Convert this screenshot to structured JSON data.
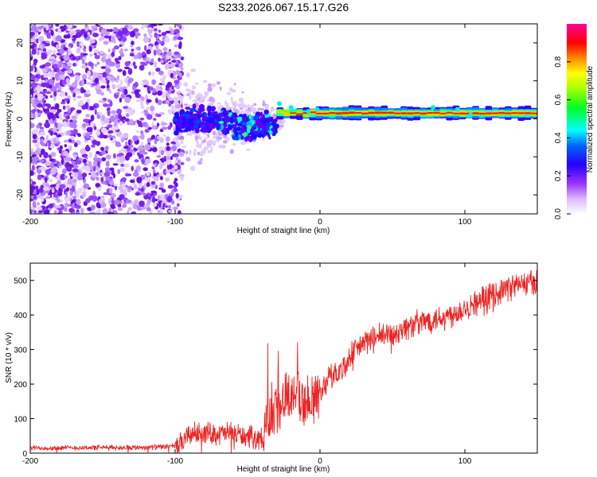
{
  "title": "S233.2026.067.15.17.G26",
  "chart_data": [
    {
      "type": "heatmap",
      "name": "spectrogram",
      "xlabel": "Height of straight line (km)",
      "ylabel": "Frequency (Hz)",
      "xlim": [
        -200,
        150
      ],
      "ylim": [
        -25,
        25
      ],
      "xticks": [
        -200,
        -100,
        0,
        100
      ],
      "xticklabels": [
        "-200",
        "-100",
        "0",
        "100"
      ],
      "yticks": [
        -20,
        -10,
        0,
        10,
        20
      ],
      "yticklabels": [
        "-20",
        "-10",
        "0",
        "10",
        "20"
      ],
      "colorbar": {
        "label": "Normalized spectral amplitude",
        "range": [
          0,
          1
        ],
        "ticks": [
          0,
          0.2,
          0.4,
          0.6,
          0.8
        ],
        "ticklabels": [
          "0.0",
          "0.2",
          "0.4",
          "0.6",
          "0.8"
        ],
        "colormap": [
          "#ffffff",
          "#cc99ff",
          "#6600ff",
          "#0000ff",
          "#00ffff",
          "#00ff00",
          "#ffff00",
          "#ff8800",
          "#ff0000",
          "#ff00aa"
        ]
      },
      "features": [
        {
          "region": "noise",
          "x_range": [
            -200,
            -100
          ],
          "freq_range": [
            -25,
            25
          ],
          "amplitude": 0.1
        },
        {
          "region": "transition",
          "x_range": [
            -100,
            -30
          ],
          "freq_range": [
            -8,
            8
          ],
          "amplitude": 0.3
        },
        {
          "region": "signal_line",
          "x_range": [
            -30,
            150
          ],
          "frequency": 1.5,
          "amplitude": 0.9
        }
      ]
    },
    {
      "type": "line",
      "name": "snr",
      "xlabel": "Height of straight line (km)",
      "ylabel": "SNR (10 * v/v)",
      "xlim": [
        -200,
        150
      ],
      "ylim": [
        0,
        550
      ],
      "xticks": [
        -200,
        -100,
        0,
        100
      ],
      "xticklabels": [
        "-200",
        "-100",
        "0",
        "100"
      ],
      "yticks": [
        0,
        100,
        200,
        300,
        400,
        500
      ],
      "yticklabels": [
        "0",
        "100",
        "200",
        "300",
        "400",
        "500"
      ],
      "color": "#ee2222",
      "series": [
        {
          "name": "SNR",
          "x": [
            -200,
            -180,
            -160,
            -140,
            -120,
            -110,
            -100,
            -95,
            -90,
            -80,
            -70,
            -60,
            -50,
            -40,
            -35,
            -30,
            -25,
            -20,
            -15,
            -10,
            -5,
            0,
            5,
            10,
            15,
            20,
            30,
            40,
            50,
            60,
            70,
            80,
            90,
            100,
            110,
            120,
            130,
            140,
            150
          ],
          "y": [
            15,
            15,
            16,
            16,
            17,
            18,
            20,
            30,
            55,
            60,
            55,
            60,
            45,
            45,
            80,
            140,
            150,
            160,
            180,
            140,
            160,
            170,
            215,
            230,
            240,
            275,
            320,
            335,
            345,
            365,
            380,
            390,
            400,
            420,
            440,
            460,
            480,
            490,
            495
          ]
        }
      ]
    }
  ]
}
